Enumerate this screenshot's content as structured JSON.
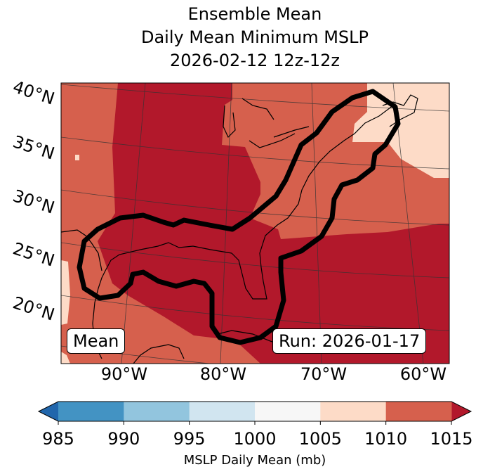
{
  "title": {
    "line1": "Ensemble Mean",
    "line2": "Daily Mean Minimum MSLP",
    "line3": "2026-02-12 12z-12z"
  },
  "map": {
    "lat_labels": [
      "40°N",
      "35°N",
      "30°N",
      "25°N",
      "20°N"
    ],
    "lon_labels": [
      "90°W",
      "80°W",
      "70°W",
      "60°W"
    ],
    "mean_label": "Mean",
    "run_label": "Run: 2026-01-17",
    "fill_colors": {
      "1005_1010": "#fddbc7",
      "1010_1015": "#d6604d",
      "above_1015": "#b2182b"
    },
    "contour_color": "#000000"
  },
  "chart_data": {
    "type": "heatmap",
    "title": "Ensemble Mean Daily Mean Minimum MSLP 2026-02-12 12z-12z",
    "colorbar": {
      "label": "MSLP Daily Mean (mb)",
      "ticks": [
        "985",
        "990",
        "995",
        "1000",
        "1005",
        "1010",
        "1015"
      ],
      "bins": [
        {
          "range": [
            985,
            990
          ],
          "color": "#4393c3"
        },
        {
          "range": [
            990,
            995
          ],
          "color": "#92c5de"
        },
        {
          "range": [
            995,
            1000
          ],
          "color": "#d1e5f0"
        },
        {
          "range": [
            1000,
            1005
          ],
          "color": "#f7f7f7"
        },
        {
          "range": [
            1005,
            1010
          ],
          "color": "#fddbc7"
        },
        {
          "range": [
            1010,
            1015
          ],
          "color": "#d6604d"
        }
      ],
      "under_color": "#2166ac",
      "over_color": "#b2182b",
      "extend": "both"
    }
  }
}
